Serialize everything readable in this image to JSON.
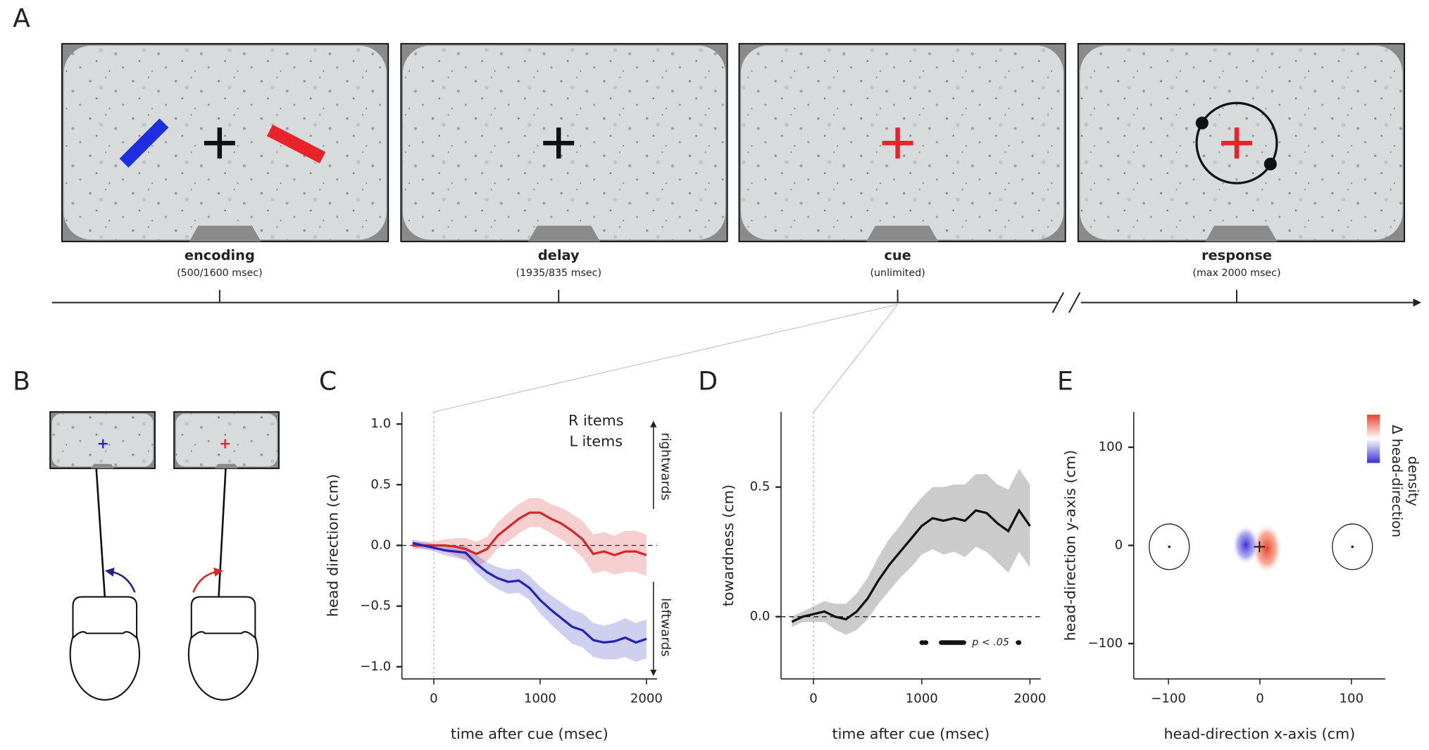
{
  "panel_labels": [
    "A",
    "B",
    "C",
    "D",
    "E"
  ],
  "timeline": {
    "stages": [
      {
        "name": "encoding",
        "duration": "(500/1600 msec)"
      },
      {
        "name": "delay",
        "duration": "(1935/835 msec)"
      },
      {
        "name": "cue",
        "duration": "(unlimited)"
      },
      {
        "name": "response",
        "duration": "(max 2000 msec)"
      }
    ]
  },
  "chart_data": [
    {
      "type": "line",
      "xlabel": "time after cue (msec)",
      "ylabel": "head direction (cm)",
      "x": [
        -200,
        -100,
        0,
        100,
        200,
        300,
        400,
        500,
        600,
        700,
        800,
        900,
        1000,
        1100,
        1200,
        1300,
        1400,
        1500,
        1600,
        1700,
        1800,
        1900,
        2000
      ],
      "xlim": [
        -300,
        2100
      ],
      "xticks": [
        0,
        1000,
        2000
      ],
      "ylim": [
        -1.1,
        1.1
      ],
      "yticks": [
        {
          "value": -1,
          "label": "−1.0"
        },
        {
          "value": -0.5,
          "label": "−0.5"
        },
        {
          "value": 0,
          "label": "0.0"
        },
        0.5,
        {
          "value": 1,
          "label": "1.0"
        }
      ],
      "reference_line": 0,
      "cue_line": 0,
      "series": [
        {
          "name": "R items",
          "color": "#d62728",
          "values": [
            0,
            0,
            0,
            0,
            -0.01,
            -0.03,
            -0.07,
            -0.03,
            0.08,
            0.15,
            0.22,
            0.27,
            0.27,
            0.22,
            0.18,
            0.12,
            0.05,
            -0.07,
            -0.05,
            -0.08,
            -0.05,
            -0.05,
            -0.08
          ],
          "error": [
            0.03,
            0.03,
            0.03,
            0.05,
            0.07,
            0.09,
            0.1,
            0.1,
            0.11,
            0.12,
            0.12,
            0.12,
            0.12,
            0.12,
            0.13,
            0.14,
            0.15,
            0.16,
            0.16,
            0.16,
            0.17,
            0.17,
            0.17
          ]
        },
        {
          "name": "L items",
          "color": "#2323b4",
          "values": [
            0.02,
            0,
            -0.02,
            -0.04,
            -0.05,
            -0.06,
            -0.15,
            -0.22,
            -0.27,
            -0.3,
            -0.29,
            -0.35,
            -0.45,
            -0.53,
            -0.6,
            -0.67,
            -0.7,
            -0.78,
            -0.8,
            -0.79,
            -0.76,
            -0.8,
            -0.77
          ],
          "error": [
            0.03,
            0.03,
            0.03,
            0.04,
            0.05,
            0.06,
            0.07,
            0.08,
            0.09,
            0.1,
            0.1,
            0.1,
            0.11,
            0.12,
            0.13,
            0.14,
            0.14,
            0.14,
            0.14,
            0.15,
            0.16,
            0.16,
            0.16
          ]
        }
      ],
      "annotations": [
        "rightwards",
        "leftwards"
      ]
    },
    {
      "type": "line",
      "xlabel": "time after cue (msec)",
      "ylabel": "towardness (cm)",
      "x": [
        -200,
        -100,
        0,
        100,
        200,
        300,
        400,
        500,
        600,
        700,
        800,
        900,
        1000,
        1100,
        1200,
        1300,
        1400,
        1500,
        1600,
        1700,
        1800,
        1900,
        2000
      ],
      "xlim": [
        -300,
        2100
      ],
      "xticks": [
        0,
        1000,
        2000
      ],
      "ylim": [
        -0.24,
        0.79
      ],
      "yticks": [
        {
          "value": 0,
          "label": "0.0"
        },
        0.5
      ],
      "reference_line": 0,
      "cue_line": 0,
      "series": [
        {
          "color": "#111111",
          "values": [
            -0.02,
            0,
            0.01,
            0.02,
            0,
            -0.01,
            0.02,
            0.07,
            0.14,
            0.2,
            0.25,
            0.3,
            0.35,
            0.38,
            0.37,
            0.38,
            0.37,
            0.41,
            0.4,
            0.36,
            0.33,
            0.41,
            0.35
          ],
          "error": [
            0.02,
            0.02,
            0.03,
            0.04,
            0.05,
            0.06,
            0.07,
            0.08,
            0.09,
            0.1,
            0.1,
            0.11,
            0.11,
            0.12,
            0.13,
            0.13,
            0.14,
            0.14,
            0.15,
            0.15,
            0.16,
            0.16,
            0.16
          ]
        }
      ],
      "significance_label": "p < .05",
      "significant_ranges": [
        [
          1000,
          1010
        ],
        [
          1030,
          1040
        ],
        [
          1180,
          1390
        ],
        [
          1890,
          1900
        ]
      ]
    },
    {
      "type": "heatmap",
      "xlabel": "head-direction x-axis (cm)",
      "ylabel": "head-direction y-axis (cm)",
      "xlim": [
        -138,
        137
      ],
      "xticks": [
        {
          "value": -100,
          "label": "−100"
        },
        0,
        100
      ],
      "ylim": [
        -136,
        136
      ],
      "yticks": [
        {
          "value": -100,
          "label": "−100"
        },
        0,
        100
      ],
      "colorbar_label": [
        "Δ head-direction",
        "density"
      ]
    }
  ]
}
